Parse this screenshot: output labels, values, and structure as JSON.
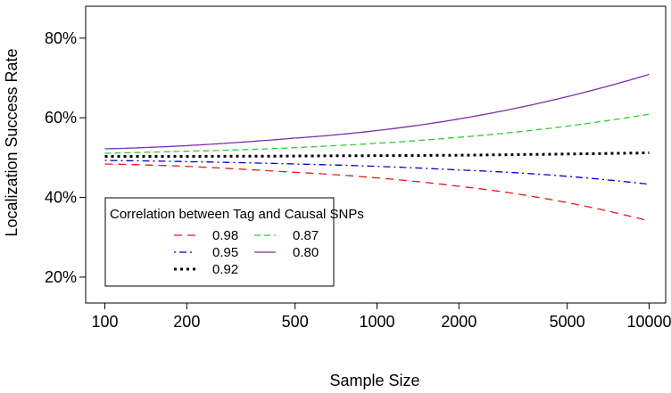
{
  "chart_data": {
    "type": "line",
    "xlabel": "Sample Size",
    "ylabel": "Localization Success Rate",
    "x_scale": "log",
    "xlim": [
      85,
      11500
    ],
    "ylim": [
      0.135,
      0.88
    ],
    "x_ticks": [
      100,
      200,
      500,
      1000,
      2000,
      5000,
      10000
    ],
    "x_tick_labels": [
      "100",
      "200",
      "500",
      "1000",
      "2000",
      "5000",
      "10000"
    ],
    "y_ticks": [
      0.2,
      0.4,
      0.6,
      0.8
    ],
    "y_tick_labels": [
      "20%",
      "40%",
      "60%",
      "80%"
    ],
    "grid": false,
    "legend": {
      "title": "Correlation between Tag and Causal SNPs",
      "placement": "bottom-left"
    },
    "x": [
      100,
      200,
      500,
      1000,
      2000,
      5000,
      10000
    ],
    "series": [
      {
        "name": "0.98",
        "color": "#E41A1C",
        "dash": "dashed",
        "values": [
          0.484,
          0.478,
          0.463,
          0.449,
          0.428,
          0.387,
          0.341
        ]
      },
      {
        "name": "0.95",
        "color": "#0000CC",
        "dash": "dotdash",
        "values": [
          0.493,
          0.49,
          0.484,
          0.478,
          0.469,
          0.453,
          0.433
        ]
      },
      {
        "name": "0.92",
        "color": "#000000",
        "dash": "dotted",
        "values": [
          0.503,
          0.503,
          0.504,
          0.505,
          0.506,
          0.509,
          0.512
        ]
      },
      {
        "name": "0.87",
        "color": "#33CC33",
        "dash": "longdash",
        "values": [
          0.511,
          0.516,
          0.525,
          0.536,
          0.551,
          0.579,
          0.609
        ]
      },
      {
        "name": "0.80",
        "color": "#7B2FA8",
        "dash": "solid",
        "values": [
          0.522,
          0.53,
          0.549,
          0.568,
          0.597,
          0.653,
          0.709
        ]
      }
    ]
  }
}
